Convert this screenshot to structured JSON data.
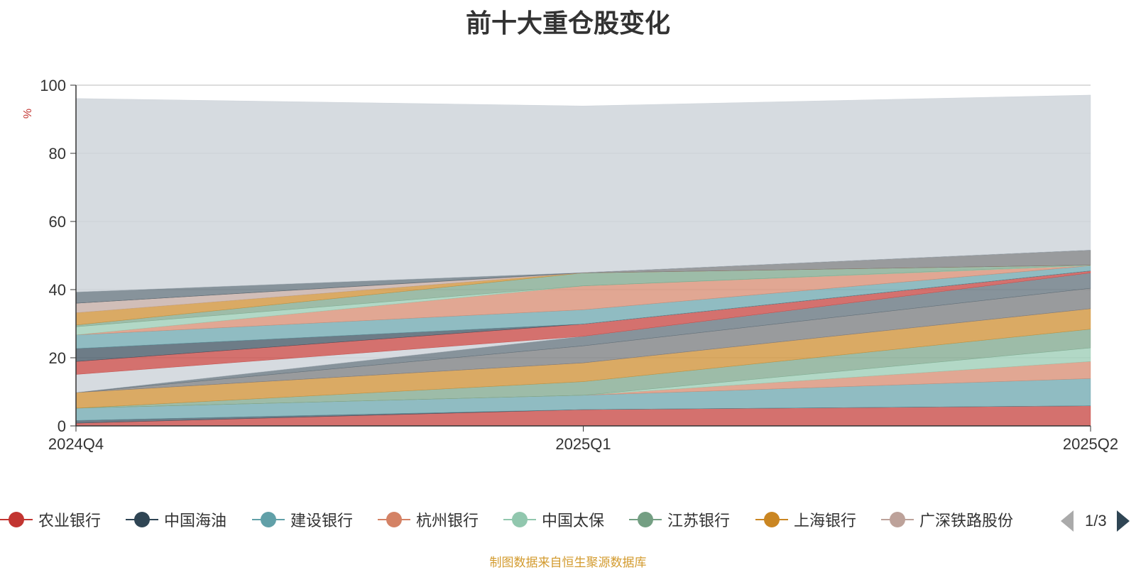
{
  "chart_data": {
    "type": "area",
    "title": "前十大重仓股变化",
    "ylabel": "%",
    "ylim": [
      0,
      100
    ],
    "yticks": [
      0,
      20,
      40,
      60,
      80,
      100
    ],
    "categories": [
      "2024Q4",
      "2025Q1",
      "2025Q2"
    ],
    "series": [
      {
        "name": "农业银行",
        "color": "#c23531",
        "values": [
          0.8,
          4.8,
          5.9
        ]
      },
      {
        "name": "中国海油",
        "color": "#2f4554",
        "values": [
          0.8,
          0.0,
          0.0
        ]
      },
      {
        "name": "建设银行",
        "color": "#61a0a8",
        "values": [
          3.6,
          4.2,
          8.0
        ]
      },
      {
        "name": "杭州银行",
        "color": "#d48265",
        "values": [
          0.0,
          0.0,
          5.0
        ]
      },
      {
        "name": "中国太保",
        "color": "#91c7ae",
        "values": [
          0.0,
          0.0,
          4.0
        ]
      },
      {
        "name": "江苏银行",
        "color": "#749f83",
        "values": [
          0.0,
          4.0,
          5.5
        ]
      },
      {
        "name": "上海银行",
        "color": "#ca8622",
        "values": [
          4.6,
          5.5,
          6.0
        ]
      },
      {
        "name": "广深铁路股份",
        "color": "#bda29a",
        "values": [
          0.0,
          0.0,
          0.0
        ]
      },
      {
        "name": "",
        "color": "#6e7074",
        "values": [
          0.0,
          5.0,
          6.0
        ]
      },
      {
        "name": "",
        "color": "#546570",
        "values": [
          0.0,
          2.8,
          4.5
        ]
      },
      {
        "name": "",
        "color": "#c4ccd3",
        "values": [
          5.3,
          0.0,
          0.0
        ]
      },
      {
        "name": "",
        "color": "#c23531",
        "values": [
          3.8,
          3.6,
          0.6
        ]
      },
      {
        "name": "",
        "color": "#2f4554",
        "values": [
          3.8,
          0.0,
          0.0
        ]
      },
      {
        "name": "",
        "color": "#61a0a8",
        "values": [
          4.0,
          4.2,
          1.5
        ]
      },
      {
        "name": "",
        "color": "#d48265",
        "values": [
          0.0,
          7.0,
          0.0
        ]
      },
      {
        "name": "",
        "color": "#91c7ae",
        "values": [
          2.4,
          0.0,
          0.2
        ]
      },
      {
        "name": "",
        "color": "#749f83",
        "values": [
          0.5,
          3.8,
          0.0
        ]
      },
      {
        "name": "",
        "color": "#ca8622",
        "values": [
          3.6,
          0.0,
          0.0
        ]
      },
      {
        "name": "",
        "color": "#bda29a",
        "values": [
          2.8,
          0.0,
          0.0
        ]
      },
      {
        "name": "",
        "color": "#6e7074",
        "values": [
          0.0,
          0.1,
          4.4
        ]
      },
      {
        "name": "",
        "color": "#546570",
        "values": [
          3.3,
          0.0,
          0.0
        ]
      },
      {
        "name": "",
        "color": "#c4ccd3",
        "values": [
          56.8,
          48.9,
          45.5
        ]
      }
    ]
  },
  "legend": {
    "items": [
      {
        "label": "农业银行",
        "color": "#c23531"
      },
      {
        "label": "中国海油",
        "color": "#2f4554"
      },
      {
        "label": "建设银行",
        "color": "#61a0a8"
      },
      {
        "label": "杭州银行",
        "color": "#d48265"
      },
      {
        "label": "中国太保",
        "color": "#91c7ae"
      },
      {
        "label": "江苏银行",
        "color": "#749f83"
      },
      {
        "label": "上海银行",
        "color": "#ca8622"
      },
      {
        "label": "广深铁路股份",
        "color": "#bda29a"
      }
    ],
    "page_indicator": "1/3"
  },
  "source_note": "制图数据来自恒生聚源数据库"
}
